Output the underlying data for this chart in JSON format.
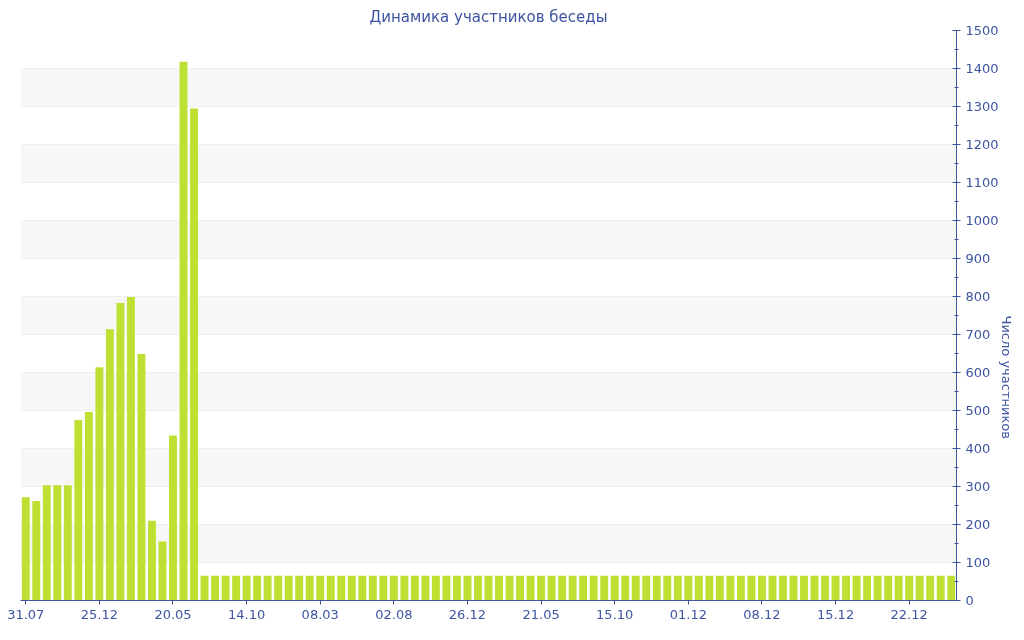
{
  "chart_data": {
    "type": "bar",
    "title": "Динамика участников беседы",
    "ylabel": "Число участников",
    "categories": [
      "31.07",
      null,
      null,
      null,
      null,
      null,
      null,
      "25.12",
      null,
      null,
      null,
      null,
      null,
      null,
      "20.05",
      null,
      null,
      null,
      null,
      null,
      null,
      "14.10",
      null,
      null,
      null,
      null,
      null,
      null,
      "08.03",
      null,
      null,
      null,
      null,
      null,
      null,
      "02.08",
      null,
      null,
      null,
      null,
      null,
      null,
      "26.12",
      null,
      null,
      null,
      null,
      null,
      null,
      "21.05",
      null,
      null,
      null,
      null,
      null,
      null,
      "15.10",
      null,
      null,
      null,
      null,
      null,
      null,
      "01.12",
      null,
      null,
      null,
      null,
      null,
      null,
      "08.12",
      null,
      null,
      null,
      null,
      null,
      null,
      "15.12",
      null,
      null,
      null,
      null,
      null,
      null,
      "22.12",
      null,
      null,
      null,
      null
    ],
    "values": [
      272,
      262,
      303,
      303,
      303,
      475,
      496,
      614,
      714,
      783,
      799,
      649,
      210,
      155,
      434,
      1418,
      1295,
      65,
      65,
      65,
      65,
      65,
      65,
      65,
      65,
      65,
      65,
      65,
      65,
      65,
      65,
      65,
      65,
      65,
      65,
      65,
      65,
      65,
      65,
      65,
      65,
      65,
      65,
      65,
      65,
      65,
      65,
      65,
      65,
      65,
      65,
      65,
      65,
      65,
      65,
      65,
      65,
      65,
      65,
      65,
      65,
      65,
      65,
      65,
      65,
      65,
      65,
      65,
      65,
      65,
      65,
      65,
      65,
      65,
      65,
      65,
      65,
      65,
      65,
      65,
      65,
      65,
      65,
      65,
      65,
      65,
      65,
      65,
      65
    ],
    "color": "#bde032",
    "ylim": [
      0,
      1500
    ],
    "yticks": [
      0,
      100,
      200,
      300,
      400,
      500,
      600,
      700,
      800,
      900,
      1000,
      1100,
      1200,
      1300,
      1400,
      1500
    ],
    "grid": "y"
  }
}
